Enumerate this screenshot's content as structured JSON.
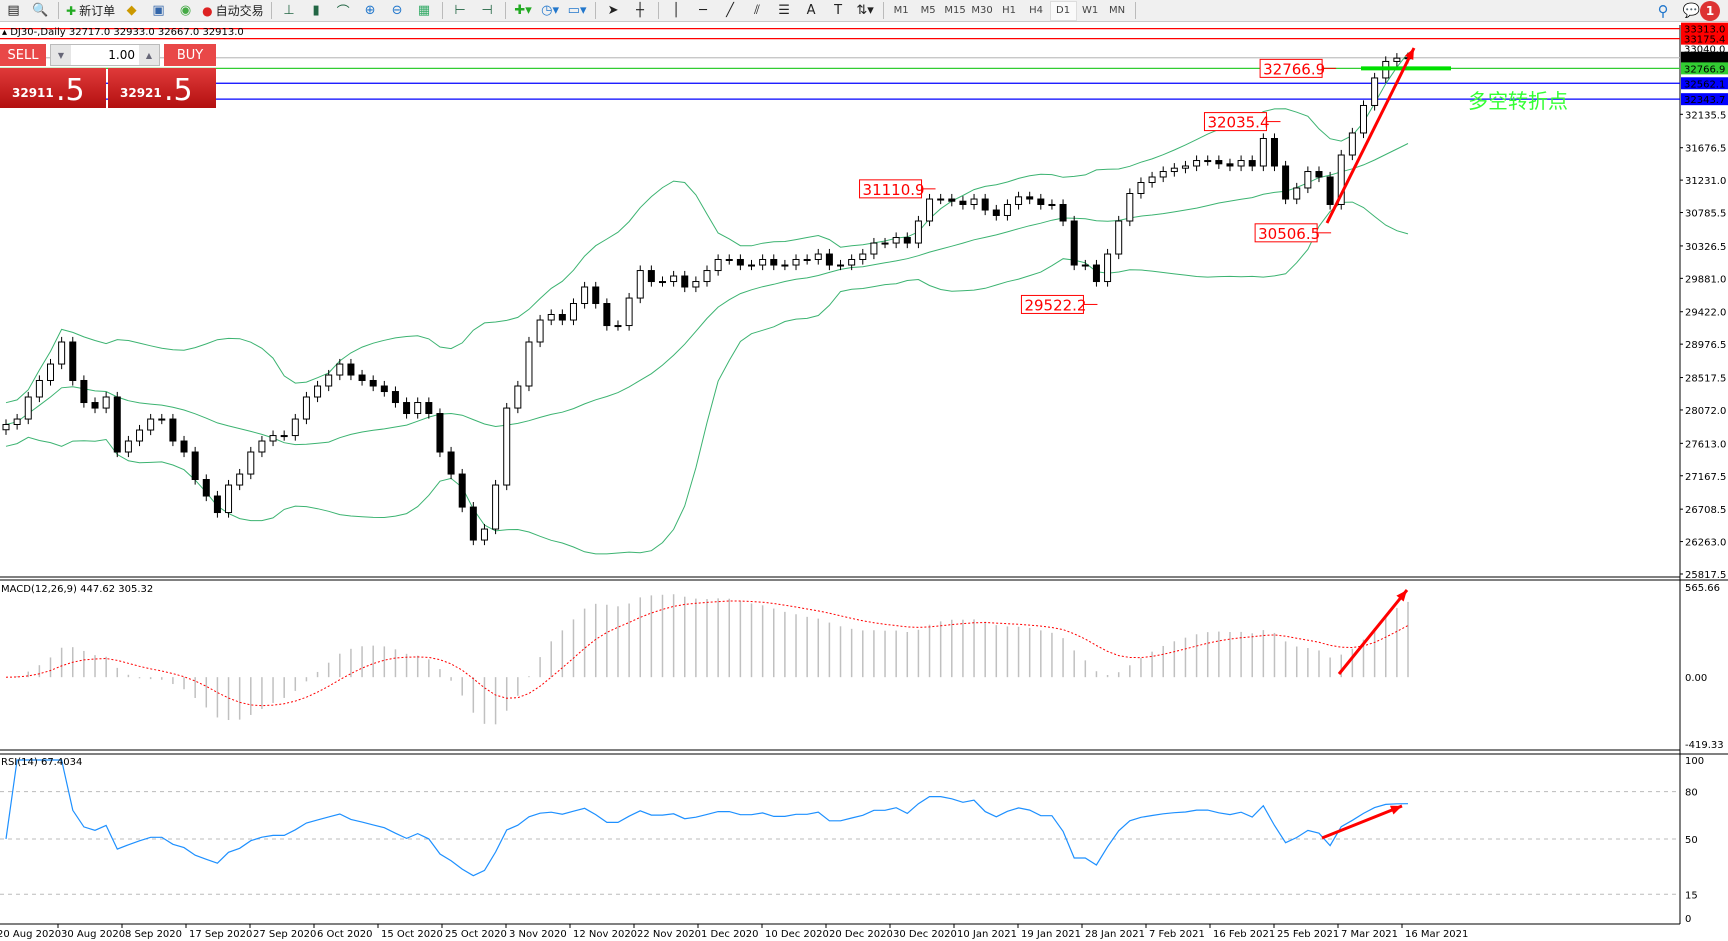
{
  "toolbar": {
    "items": [
      {
        "icon": "new-chart-icon"
      },
      {
        "icon": "navigator-icon"
      },
      {
        "icon": "new-order-icon",
        "label": "新订单"
      },
      {
        "icon": "metaeditor-icon"
      },
      {
        "icon": "terminal-icon"
      },
      {
        "icon": "signals-icon"
      },
      {
        "icon": "auto-trading-icon",
        "label": "自动交易"
      }
    ],
    "chart_tools": [
      "bar-chart-icon",
      "candlestick-icon",
      "line-chart-icon",
      "zoom-in-icon",
      "zoom-out-icon",
      "tile-windows-icon",
      "chart-shift-icon",
      "autoscroll-icon",
      "indicators-icon",
      "periods-icon",
      "templates-icon",
      "cursor-icon",
      "crosshair-icon",
      "vertical-line-icon",
      "horizontal-line-icon",
      "trendline-icon",
      "equidistant-channel-icon",
      "fibonacci-icon",
      "text-icon",
      "text-label-icon",
      "arrows-icon"
    ],
    "timeframes": [
      "M1",
      "M5",
      "M15",
      "M30",
      "H1",
      "H4",
      "D1",
      "W1",
      "MN"
    ],
    "active_timeframe": "D1",
    "notification_count": "1"
  },
  "chart": {
    "title": "DJ30-,Daily  32717.0 32933.0 32667.0 32913.0"
  },
  "trade_panel": {
    "sell_label": "SELL",
    "buy_label": "BUY",
    "lot": "1.00",
    "sell_price_main": "32911",
    "sell_price_big": ".5",
    "buy_price_main": "32921",
    "buy_price_big": ".5"
  },
  "annotation_text": "多空转折点",
  "colors": {
    "bull": "#ffffff",
    "bear": "#000000",
    "bands": "#3cb371",
    "rsi": "#1e90ff",
    "macd_hist": "#c0c0c0",
    "macd_signal": "#ff0000",
    "annot": "#ff0000",
    "turn_text": "#33ff33"
  },
  "chart_data": {
    "type": "candlestick",
    "symbol": "DJ30-",
    "period": "Daily",
    "price_axis_ticks": [
      "32135.5",
      "31676.5",
      "31231.0",
      "30785.5",
      "30326.5",
      "29881.0",
      "29422.0",
      "28976.5",
      "28517.5",
      "28072.0",
      "27613.0",
      "27167.5",
      "26708.5",
      "26263.0",
      "25817.5"
    ],
    "ylim": [
      25776,
      33363
    ],
    "levels": [
      {
        "price": "33313.0",
        "color": "#ff0000"
      },
      {
        "price": "33175.4",
        "color": "#ff0000"
      },
      {
        "price": "33040.0",
        "color": ""
      },
      {
        "price": "32913.0",
        "color": "#000000",
        "line": "#c0c0c0"
      },
      {
        "price": "32766.9",
        "color": "#32cd32"
      },
      {
        "price": "32562.1",
        "color": "#0000ff"
      },
      {
        "price": "32343.7",
        "color": "#0000ff"
      }
    ],
    "date_labels": [
      "20 Aug 2020",
      "30 Aug 2020",
      "8 Sep 2020",
      "17 Sep 2020",
      "27 Sep 2020",
      "6 Oct 2020",
      "15 Oct 2020",
      "25 Oct 2020",
      "3 Nov 2020",
      "12 Nov 2020",
      "22 Nov 2020",
      "1 Dec 2020",
      "10 Dec 2020",
      "20 Dec 2020",
      "30 Dec 2020",
      "10 Jan 2021",
      "19 Jan 2021",
      "28 Jan 2021",
      "7 Feb 2021",
      "16 Feb 2021",
      "25 Feb 2021",
      "7 Mar 2021",
      "16 Mar 2021"
    ],
    "first_open": 27800,
    "close": [
      27872,
      27947,
      28250,
      28477,
      28703,
      29006,
      28477,
      28174,
      28098,
      28250,
      27494,
      27645,
      27796,
      27947,
      27947,
      27645,
      27494,
      27116,
      26889,
      26662,
      27040,
      27191,
      27494,
      27645,
      27720,
      27720,
      27947,
      28250,
      28401,
      28552,
      28703,
      28552,
      28477,
      28401,
      28325,
      28174,
      28023,
      28174,
      28023,
      27494,
      27191,
      26737,
      26284,
      26435,
      27040,
      28098,
      28401,
      29006,
      29308,
      29384,
      29308,
      29535,
      29762,
      29535,
      29232,
      29232,
      29610,
      29988,
      29837,
      29837,
      29913,
      29762,
      29837,
      29988,
      30140,
      30140,
      30064,
      30064,
      30140,
      30064,
      30064,
      30140,
      30140,
      30215,
      30064,
      30064,
      30140,
      30215,
      30366,
      30366,
      30442,
      30366,
      30669,
      30971,
      30971,
      30941,
      30896,
      30971,
      30820,
      30745,
      30896,
      31001,
      30971,
      30896,
      30896,
      30669,
      30064,
      30064,
      29837,
      30215,
      30669,
      31047,
      31198,
      31274,
      31349,
      31395,
      31425,
      31500,
      31500,
      31455,
      31425,
      31500,
      31425,
      31803,
      31425,
      30971,
      31123,
      31349,
      31274,
      30896,
      31576,
      31879,
      32257,
      32635,
      32862,
      32907,
      32913
    ],
    "price_labels": [
      {
        "text": "32766.9",
        "bar": 119
      },
      {
        "text": "32035.4",
        "bar": 114
      },
      {
        "text": "31110.9",
        "bar": 83
      },
      {
        "text": "30506.5",
        "bar": 119
      },
      {
        "text": "29522.2",
        "bar": 98
      }
    ],
    "indicators": {
      "bollinger": {
        "period": 20,
        "deviation": 2
      },
      "macd": {
        "label": "MACD(12,26,9) 447.62 305.32",
        "ticks": [
          "565.66",
          "0.00",
          "-419.33"
        ],
        "range": [
          -419.33,
          565.66
        ]
      },
      "rsi": {
        "label": "RSI(14) 67.4034",
        "ticks": [
          "100",
          "80",
          "50",
          "15",
          "0"
        ],
        "levels": [
          80,
          50,
          15
        ]
      }
    }
  }
}
